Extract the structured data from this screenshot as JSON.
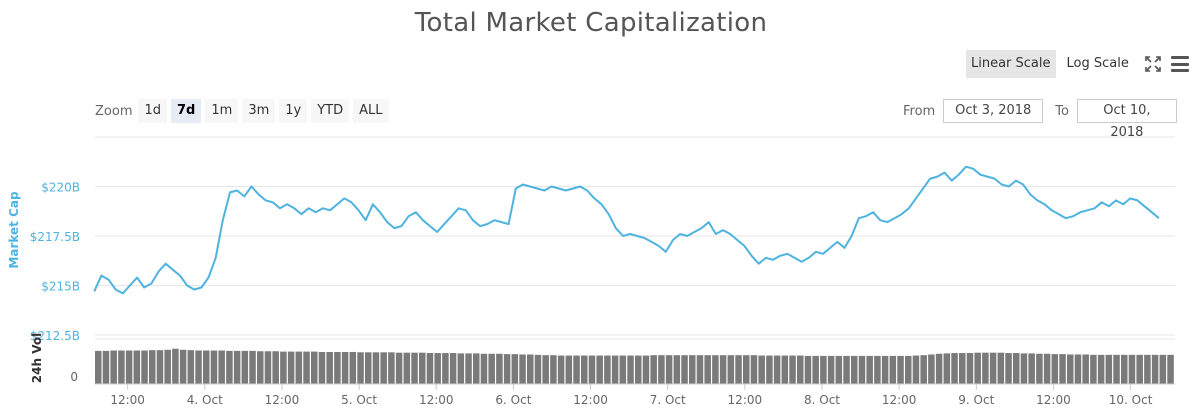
{
  "title": "Total Market Capitalization",
  "scale": {
    "linear_label": "Linear Scale",
    "log_label": "Log Scale",
    "active": "linear"
  },
  "icons": {
    "fullscreen": "fullscreen-icon",
    "menu": "hamburger-menu-icon"
  },
  "zoom": {
    "label": "Zoom",
    "options": [
      "1d",
      "7d",
      "1m",
      "3m",
      "1y",
      "YTD",
      "ALL"
    ],
    "active": "7d"
  },
  "range": {
    "from_label": "From",
    "from_value": "Oct 3, 2018",
    "to_label": "To",
    "to_value": "Oct 10, 2018"
  },
  "colors": {
    "line": "#4fb3e0",
    "volume": "#7a7a7a",
    "axis_label": "#4fb3e0",
    "grid": "#e6e6e6"
  },
  "chart_data": {
    "type": "line",
    "title": "Total Market Capitalization",
    "ylabel": "Market Cap",
    "y_ticks": [
      "$220B",
      "$217.5B",
      "$215B",
      "$212.5B"
    ],
    "y_tick_values": [
      220,
      217.5,
      215,
      212.5
    ],
    "ylim": [
      212.5,
      222.5
    ],
    "x_ticks": [
      "12:00",
      "4. Oct",
      "12:00",
      "5. Oct",
      "12:00",
      "6. Oct",
      "12:00",
      "7. Oct",
      "12:00",
      "8. Oct",
      "12:00",
      "9. Oct",
      "12:00",
      "10. Oct"
    ],
    "x_tick_values": [
      0.5,
      1,
      1.5,
      2,
      2.5,
      3,
      3.5,
      4,
      4.5,
      5,
      5.5,
      6,
      6.5,
      7
    ],
    "x_start": 0.2833,
    "x_end": 7.1833,
    "x_unit": "days after Oct 3, 2018 00:00",
    "series": [
      {
        "name": "Market Cap",
        "values_billion": [
          214.7,
          215.5,
          215.3,
          214.8,
          214.6,
          215.0,
          215.4,
          214.9,
          215.1,
          215.7,
          216.1,
          215.8,
          215.5,
          215.0,
          214.8,
          214.9,
          215.4,
          216.4,
          218.3,
          219.7,
          219.8,
          219.5,
          220.0,
          219.6,
          219.3,
          219.2,
          218.9,
          219.1,
          218.9,
          218.6,
          218.9,
          218.7,
          218.9,
          218.8,
          219.1,
          219.4,
          219.2,
          218.8,
          218.3,
          219.1,
          218.7,
          218.2,
          217.9,
          218.0,
          218.5,
          218.7,
          218.3,
          218.0,
          217.7,
          218.1,
          218.5,
          218.9,
          218.8,
          218.3,
          218.0,
          218.1,
          218.3,
          218.2,
          218.1,
          219.9,
          220.1,
          220.0,
          219.9,
          219.8,
          220.0,
          219.9,
          219.8,
          219.9,
          220.0,
          219.8,
          219.4,
          219.1,
          218.6,
          217.9,
          217.5,
          217.6,
          217.5,
          217.4,
          217.2,
          217.0,
          216.7,
          217.3,
          217.6,
          217.5,
          217.7,
          217.9,
          218.2,
          217.6,
          217.8,
          217.6,
          217.3,
          217.0,
          216.5,
          216.1,
          216.4,
          216.3,
          216.5,
          216.6,
          216.4,
          216.2,
          216.4,
          216.7,
          216.6,
          216.9,
          217.2,
          216.9,
          217.5,
          218.4,
          218.5,
          218.7,
          218.3,
          218.2,
          218.4,
          218.6,
          218.9,
          219.4,
          219.9,
          220.4,
          220.5,
          220.7,
          220.3,
          220.6,
          221.0,
          220.9,
          220.6,
          220.5,
          220.4,
          220.1,
          220.0,
          220.3,
          220.1,
          219.6,
          219.3,
          219.1,
          218.8,
          218.6,
          218.4,
          218.5,
          218.7,
          218.8,
          218.9,
          219.2,
          219.0,
          219.3,
          219.1,
          219.4,
          219.3,
          219.0,
          218.7,
          218.4
        ]
      }
    ],
    "volume": {
      "label": "24h Vol",
      "y_tick": "0",
      "relative_heights": [
        0.92,
        0.92,
        0.93,
        0.93,
        0.93,
        0.93,
        0.93,
        0.94,
        0.94,
        0.95,
        0.98,
        0.95,
        0.94,
        0.93,
        0.93,
        0.93,
        0.93,
        0.92,
        0.92,
        0.92,
        0.92,
        0.91,
        0.91,
        0.91,
        0.9,
        0.9,
        0.9,
        0.9,
        0.9,
        0.89,
        0.89,
        0.89,
        0.89,
        0.89,
        0.88,
        0.88,
        0.88,
        0.88,
        0.88,
        0.87,
        0.87,
        0.87,
        0.87,
        0.86,
        0.86,
        0.86,
        0.86,
        0.85,
        0.85,
        0.85,
        0.84,
        0.84,
        0.84,
        0.83,
        0.83,
        0.82,
        0.82,
        0.81,
        0.8,
        0.8,
        0.79,
        0.79,
        0.79,
        0.79,
        0.79,
        0.79,
        0.79,
        0.79,
        0.79,
        0.79,
        0.79,
        0.79,
        0.8,
        0.8,
        0.8,
        0.8,
        0.8,
        0.8,
        0.8,
        0.8,
        0.8,
        0.8,
        0.8,
        0.8,
        0.8,
        0.8,
        0.79,
        0.79,
        0.79,
        0.79,
        0.79,
        0.79,
        0.78,
        0.78,
        0.78,
        0.78,
        0.78,
        0.78,
        0.78,
        0.78,
        0.78,
        0.78,
        0.78,
        0.78,
        0.78,
        0.78,
        0.79,
        0.8,
        0.82,
        0.84,
        0.85,
        0.86,
        0.86,
        0.86,
        0.87,
        0.87,
        0.87,
        0.87,
        0.86,
        0.86,
        0.85,
        0.85,
        0.84,
        0.84,
        0.83,
        0.83,
        0.82,
        0.82,
        0.82,
        0.81,
        0.81,
        0.81,
        0.81,
        0.81,
        0.81,
        0.81,
        0.81,
        0.81,
        0.81,
        0.81
      ]
    },
    "grid": true,
    "legend": "none"
  }
}
